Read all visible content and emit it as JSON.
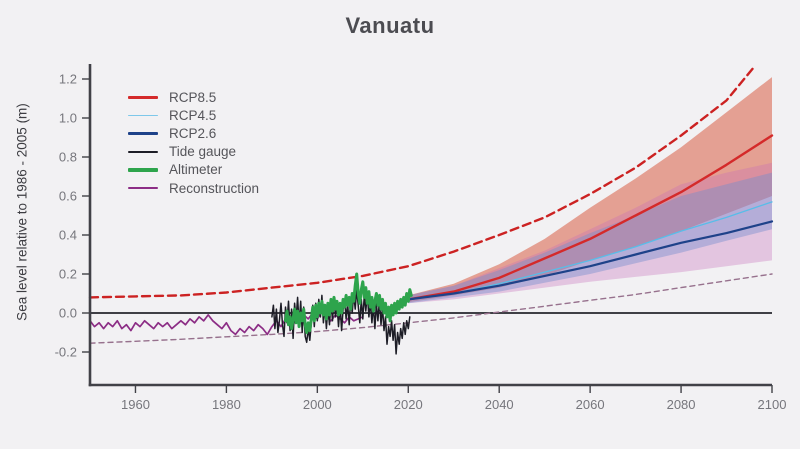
{
  "page": {
    "background": "#f2f1f3",
    "title": "Vanuatu"
  },
  "legend": {
    "items": [
      {
        "key": "rcp85",
        "label": "RCP8.5",
        "color": "#d42a2a",
        "thickness": 3
      },
      {
        "key": "rcp45",
        "label": "RCP4.5",
        "color": "#7ec8ea",
        "thickness": 1.5
      },
      {
        "key": "rcp26",
        "label": "RCP2.6",
        "color": "#1e4289",
        "thickness": 2.5
      },
      {
        "key": "tide-gauge",
        "label": "Tide gauge",
        "color": "#1d1d26",
        "thickness": 2
      },
      {
        "key": "altimeter",
        "label": "Altimeter",
        "color": "#2ea44c",
        "thickness": 3.5
      },
      {
        "key": "reconstruction",
        "label": "Reconstruction",
        "color": "#8c2d85",
        "thickness": 2.5
      }
    ]
  },
  "chart_data": {
    "type": "line",
    "title": "Vanuatu",
    "xlabel": "",
    "ylabel": "Sea level relative to 1986 - 2005 (m)",
    "xlim": [
      1950,
      2100
    ],
    "ylim": [
      -0.37,
      1.28
    ],
    "grid": false,
    "zero_line": {
      "value": 0.0,
      "color": "#3f3f45",
      "width": 2
    },
    "x_ticks": [
      {
        "v": 1960,
        "label": "1960"
      },
      {
        "v": 1980,
        "label": "1980"
      },
      {
        "v": 2000,
        "label": "2000"
      },
      {
        "v": 2020,
        "label": "2020"
      },
      {
        "v": 2040,
        "label": "2040"
      },
      {
        "v": 2060,
        "label": "2060"
      },
      {
        "v": 2080,
        "label": "2080"
      },
      {
        "v": 2100,
        "label": "2100"
      }
    ],
    "y_ticks": [
      {
        "v": -0.2,
        "label": "-0.2"
      },
      {
        "v": 0.0,
        "label": "0.0"
      },
      {
        "v": 0.2,
        "label": "0.2"
      },
      {
        "v": 0.4,
        "label": "0.4"
      },
      {
        "v": 0.6,
        "label": "0.6"
      },
      {
        "v": 0.8,
        "label": "0.8"
      },
      {
        "v": 1.0,
        "label": "1.0"
      },
      {
        "v": 1.2,
        "label": "1.2"
      }
    ],
    "axis_color": "#414147",
    "tick_label_color": "#76767c",
    "bands": [
      {
        "name": "rcp85-range",
        "fill": "rgba(213,80,52,0.50)",
        "years": [
          2020,
          2030,
          2040,
          2050,
          2060,
          2070,
          2080,
          2090,
          2100
        ],
        "upper": [
          0.09,
          0.15,
          0.25,
          0.38,
          0.54,
          0.69,
          0.85,
          1.03,
          1.21
        ],
        "lower": [
          0.055,
          0.09,
          0.13,
          0.19,
          0.27,
          0.34,
          0.42,
          0.51,
          0.6
        ]
      },
      {
        "name": "rcp26-range",
        "fill": "rgba(197,110,185,0.33)",
        "years": [
          2020,
          2030,
          2040,
          2050,
          2060,
          2070,
          2080,
          2090,
          2100
        ],
        "upper": [
          0.09,
          0.14,
          0.23,
          0.32,
          0.43,
          0.54,
          0.66,
          0.72,
          0.77
        ],
        "lower": [
          0.05,
          0.07,
          0.1,
          0.13,
          0.16,
          0.185,
          0.21,
          0.24,
          0.27
        ]
      },
      {
        "name": "rcp45-range",
        "fill": "rgba(115,140,205,0.42)",
        "years": [
          2020,
          2030,
          2040,
          2050,
          2060,
          2070,
          2080,
          2090,
          2100
        ],
        "upper": [
          0.09,
          0.14,
          0.22,
          0.31,
          0.41,
          0.5,
          0.6,
          0.66,
          0.72
        ],
        "lower": [
          0.05,
          0.08,
          0.11,
          0.155,
          0.2,
          0.255,
          0.31,
          0.37,
          0.43
        ]
      }
    ],
    "curves": [
      {
        "name": "high-end-dashed",
        "color": "#cc2222",
        "width": 2.4,
        "dash": "8 5",
        "years": [
          1950,
          1960,
          1970,
          1980,
          1990,
          2000,
          2010,
          2020,
          2030,
          2040,
          2050,
          2060,
          2070,
          2080,
          2090,
          2096
        ],
        "values": [
          0.08,
          0.085,
          0.09,
          0.105,
          0.13,
          0.155,
          0.19,
          0.24,
          0.315,
          0.4,
          0.49,
          0.61,
          0.745,
          0.91,
          1.09,
          1.26
        ]
      },
      {
        "name": "low-end-dashed",
        "color": "#97718d",
        "width": 1.4,
        "dash": "5 4",
        "years": [
          1950,
          1960,
          1970,
          1980,
          1990,
          2000,
          2010,
          2020,
          2030,
          2040,
          2050,
          2060,
          2070,
          2080,
          2090,
          2100
        ],
        "values": [
          -0.155,
          -0.145,
          -0.135,
          -0.122,
          -0.11,
          -0.095,
          -0.075,
          -0.05,
          -0.025,
          0.005,
          0.035,
          0.065,
          0.095,
          0.13,
          0.165,
          0.2
        ]
      },
      {
        "name": "rcp85-median",
        "color": "#d42a2a",
        "width": 2.4,
        "dash": "",
        "years": [
          2020,
          2030,
          2040,
          2050,
          2060,
          2070,
          2080,
          2090,
          2100
        ],
        "values": [
          0.07,
          0.11,
          0.18,
          0.28,
          0.38,
          0.5,
          0.62,
          0.76,
          0.91
        ]
      },
      {
        "name": "rcp45-median",
        "color": "#58bde8",
        "width": 1.3,
        "dash": "",
        "years": [
          2020,
          2030,
          2040,
          2050,
          2060,
          2070,
          2080,
          2090,
          2100
        ],
        "values": [
          0.07,
          0.1,
          0.15,
          0.21,
          0.27,
          0.34,
          0.42,
          0.49,
          0.57
        ]
      },
      {
        "name": "rcp26-median",
        "color": "#1e4289",
        "width": 2.2,
        "dash": "",
        "years": [
          2020,
          2030,
          2040,
          2050,
          2060,
          2070,
          2080,
          2090,
          2100
        ],
        "values": [
          0.07,
          0.1,
          0.14,
          0.19,
          0.24,
          0.3,
          0.36,
          0.41,
          0.47
        ]
      }
    ],
    "historical": [
      {
        "name": "reconstruction",
        "color": "#8c2d85",
        "width": 1.7,
        "start": 1950,
        "step": 1,
        "values": [
          -0.04,
          -0.07,
          -0.05,
          -0.08,
          -0.05,
          -0.07,
          -0.04,
          -0.08,
          -0.06,
          -0.09,
          -0.05,
          -0.07,
          -0.04,
          -0.06,
          -0.08,
          -0.05,
          -0.07,
          -0.05,
          -0.08,
          -0.06,
          -0.04,
          -0.06,
          -0.03,
          -0.05,
          -0.02,
          -0.04,
          -0.01,
          -0.04,
          -0.06,
          -0.08,
          -0.05,
          -0.09,
          -0.11,
          -0.08,
          -0.1,
          -0.07,
          -0.09,
          -0.06,
          -0.08,
          -0.11,
          -0.07,
          -0.04,
          -0.07,
          -0.03,
          -0.06,
          -0.02,
          -0.05,
          -0.01,
          -0.03,
          0.0,
          -0.03,
          0.01,
          -0.02,
          -0.04,
          -0.01,
          -0.03,
          -0.05,
          -0.02,
          -0.04,
          -0.03,
          -0.02
        ]
      },
      {
        "name": "tide-gauge",
        "color": "#1d1d26",
        "width": 1.5,
        "start": 1990,
        "step": 0.3333,
        "values": [
          -0.02,
          0.04,
          -0.08,
          0.02,
          -0.1,
          -0.04,
          0.05,
          -0.06,
          -0.12,
          0.03,
          -0.05,
          0.06,
          -0.09,
          0.02,
          -0.13,
          0.05,
          -0.03,
          0.08,
          -0.06,
          0.06,
          -0.1,
          0.03,
          -0.12,
          -0.15,
          -0.08,
          -0.14,
          -0.05,
          0.04,
          -0.07,
          0.05,
          -0.04,
          0.07,
          -0.02,
          0.09,
          -0.05,
          0.04,
          -0.08,
          0.03,
          -0.06,
          0.06,
          -0.04,
          0.08,
          -0.02,
          0.05,
          -0.07,
          0.04,
          -0.09,
          0.02,
          0.07,
          -0.03,
          0.05,
          -0.06,
          0.08,
          0.0,
          0.1,
          0.02,
          0.12,
          0.04,
          -0.05,
          0.07,
          -0.03,
          0.09,
          0.01,
          0.1,
          -0.02,
          0.06,
          -0.05,
          0.04,
          -0.08,
          0.05,
          -0.04,
          0.07,
          -0.06,
          0.03,
          -0.09,
          -0.02,
          -0.16,
          -0.07,
          -0.12,
          -0.04,
          -0.14,
          -0.06,
          -0.21,
          -0.1,
          -0.16,
          -0.08,
          -0.13,
          -0.05,
          -0.11,
          -0.04,
          -0.08,
          -0.02
        ]
      },
      {
        "name": "altimeter",
        "color": "#2ea44c",
        "width": 3,
        "start": 1993,
        "step": 0.3333,
        "values": [
          -0.04,
          0.01,
          -0.06,
          -0.02,
          -0.08,
          -0.03,
          0.02,
          -0.05,
          0.01,
          -0.07,
          0.0,
          -0.04,
          0.02,
          -0.06,
          -0.1,
          -0.05,
          -0.09,
          -0.03,
          0.03,
          -0.04,
          0.04,
          -0.02,
          0.05,
          0.0,
          0.06,
          -0.01,
          0.04,
          -0.03,
          0.05,
          -0.01,
          0.07,
          0.01,
          0.08,
          0.02,
          0.06,
          -0.01,
          0.05,
          0.0,
          0.07,
          0.03,
          0.09,
          0.04,
          0.08,
          0.02,
          0.1,
          0.06,
          0.14,
          0.2,
          0.1,
          0.05,
          0.12,
          0.16,
          0.08,
          0.13,
          0.05,
          0.11,
          0.03,
          0.08,
          0.01,
          0.06,
          0.1,
          0.04,
          0.09,
          0.02,
          0.07,
          0.0,
          0.05,
          -0.02,
          0.03,
          -0.04,
          0.04,
          -0.01,
          0.05,
          0.0,
          0.06,
          0.02,
          0.07,
          0.03,
          0.08,
          0.04,
          0.1,
          0.06,
          0.12,
          0.09
        ]
      }
    ]
  }
}
